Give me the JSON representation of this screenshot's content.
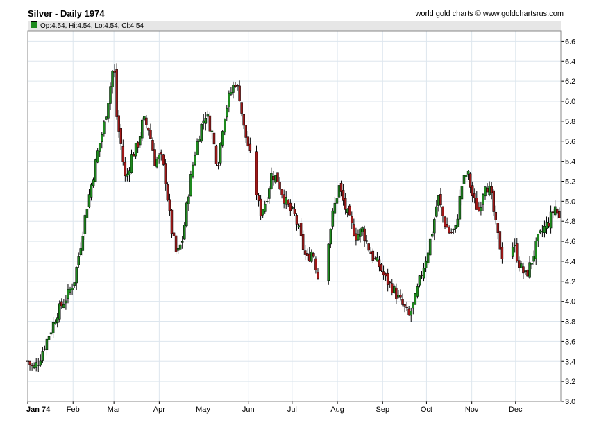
{
  "title": "Silver - Daily 1974",
  "credit": "world gold charts © www.goldchartsrus.com",
  "legend": {
    "label": "Op:4.54, Hi:4.54, Lo:4.54, Cl:4.54",
    "color": "#1e8a1e"
  },
  "colors": {
    "up": "#1e8a1e",
    "down": "#a01818",
    "grid": "#dde6ee",
    "axis": "#000000"
  },
  "chart_data": {
    "type": "candlestick",
    "y_ticks": [
      "3.0",
      "3.2",
      "3.4",
      "3.6",
      "3.8",
      "4.0",
      "4.2",
      "4.4",
      "4.6",
      "4.8",
      "5.0",
      "5.2",
      "5.4",
      "5.6",
      "5.8",
      "6.0",
      "6.2",
      "6.4",
      "6.6"
    ],
    "ylim": [
      3.0,
      6.7
    ],
    "x_months": [
      "Jan 74",
      "Feb",
      "Mar",
      "Apr",
      "May",
      "Jun",
      "Jul",
      "Aug",
      "Sep",
      "Oct",
      "Nov",
      "Dec"
    ],
    "x_month_start_day": [
      1,
      32,
      60,
      91,
      121,
      152,
      182,
      213,
      244,
      274,
      305,
      335
    ],
    "x_range_days": [
      1,
      366
    ],
    "close_path": [
      [
        1,
        3.4
      ],
      [
        5,
        3.33
      ],
      [
        9,
        3.42
      ],
      [
        13,
        3.58
      ],
      [
        17,
        3.72
      ],
      [
        21,
        3.88
      ],
      [
        25,
        3.98
      ],
      [
        29,
        4.08
      ],
      [
        33,
        4.22
      ],
      [
        37,
        4.55
      ],
      [
        41,
        4.92
      ],
      [
        45,
        5.2
      ],
      [
        49,
        5.5
      ],
      [
        53,
        5.75
      ],
      [
        57,
        6.1
      ],
      [
        60,
        6.4
      ],
      [
        62,
        5.82
      ],
      [
        65,
        5.55
      ],
      [
        68,
        5.2
      ],
      [
        72,
        5.45
      ],
      [
        76,
        5.55
      ],
      [
        80,
        5.82
      ],
      [
        84,
        5.72
      ],
      [
        88,
        5.4
      ],
      [
        92,
        5.45
      ],
      [
        95,
        5.25
      ],
      [
        99,
        4.75
      ],
      [
        103,
        4.45
      ],
      [
        107,
        4.62
      ],
      [
        111,
        5.08
      ],
      [
        115,
        5.45
      ],
      [
        119,
        5.72
      ],
      [
        123,
        5.88
      ],
      [
        127,
        5.7
      ],
      [
        131,
        5.35
      ],
      [
        135,
        5.82
      ],
      [
        139,
        6.05
      ],
      [
        143,
        6.2
      ],
      [
        146,
        6.05
      ],
      [
        149,
        5.72
      ],
      [
        152,
        5.55
      ],
      [
        156,
        5.22
      ],
      [
        160,
        4.88
      ],
      [
        164,
        5.0
      ],
      [
        168,
        5.28
      ],
      [
        172,
        5.22
      ],
      [
        176,
        5.05
      ],
      [
        180,
        4.92
      ],
      [
        184,
        4.85
      ],
      [
        188,
        4.62
      ],
      [
        192,
        4.4
      ],
      [
        196,
        4.52
      ],
      [
        200,
        4.22
      ],
      [
        203,
        4.1
      ],
      [
        206,
        4.55
      ],
      [
        210,
        4.88
      ],
      [
        214,
        5.15
      ],
      [
        218,
        4.95
      ],
      [
        222,
        4.78
      ],
      [
        226,
        4.65
      ],
      [
        230,
        4.72
      ],
      [
        234,
        4.55
      ],
      [
        238,
        4.42
      ],
      [
        242,
        4.35
      ],
      [
        246,
        4.22
      ],
      [
        250,
        4.15
      ],
      [
        254,
        4.05
      ],
      [
        258,
        3.95
      ],
      [
        262,
        3.85
      ],
      [
        266,
        4.0
      ],
      [
        270,
        4.25
      ],
      [
        274,
        4.45
      ],
      [
        278,
        4.7
      ],
      [
        282,
        5.05
      ],
      [
        286,
        4.8
      ],
      [
        290,
        4.68
      ],
      [
        294,
        4.72
      ],
      [
        298,
        5.15
      ],
      [
        302,
        5.3
      ],
      [
        306,
        5.02
      ],
      [
        310,
        4.9
      ],
      [
        314,
        5.2
      ],
      [
        318,
        5.08
      ],
      [
        322,
        4.7
      ],
      [
        326,
        4.45
      ],
      [
        330,
        4.58
      ],
      [
        334,
        4.55
      ],
      [
        338,
        4.35
      ],
      [
        342,
        4.25
      ],
      [
        346,
        4.4
      ],
      [
        350,
        4.6
      ],
      [
        354,
        4.72
      ],
      [
        358,
        4.8
      ],
      [
        362,
        4.95
      ],
      [
        366,
        4.78
      ]
    ],
    "gaps": [
      [
        154,
        157
      ],
      [
        200,
        206
      ],
      [
        326,
        332
      ]
    ]
  }
}
